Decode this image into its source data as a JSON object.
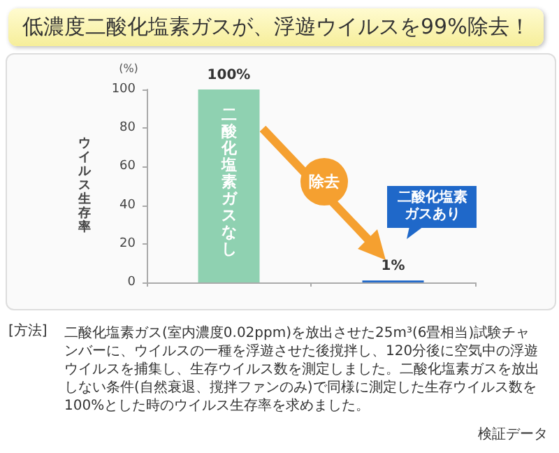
{
  "chart_data": {
    "type": "bar",
    "title": "低濃度二酸化塩素ガスが、浮遊ウイルスを99%除去！",
    "ylabel": "ウイルス生存率",
    "categories": [
      "二酸化塩素ガスなし",
      "二酸化塩素ガスあり"
    ],
    "values": [
      100,
      1
    ],
    "colors": [
      "#8fd1b1",
      "#1f68c9"
    ],
    "value_labels": [
      "100%",
      "1%"
    ],
    "ylim": [
      0,
      100
    ],
    "yticks": [
      0,
      20,
      40,
      60,
      80,
      100
    ],
    "grid": false,
    "annotations": [
      "(%)",
      "除去",
      "[方法]",
      "二酸化塩素ガス(室内濃度0.02ppm)を放出させた25m³(6畳相当)試験チャンバーに、ウイルスの一種を浮遊させた後撹拌し、120分後に空気中の浮遊ウイルスを捕集し、生存ウイルス数を測定しました。二酸化塩素ガスを放出しない条件(自然衰退、撹拌ファンのみ)で同様に測定した生存ウイルス数を100%とした時のウイルス生存率を求めました。",
      "検証データ"
    ]
  }
}
